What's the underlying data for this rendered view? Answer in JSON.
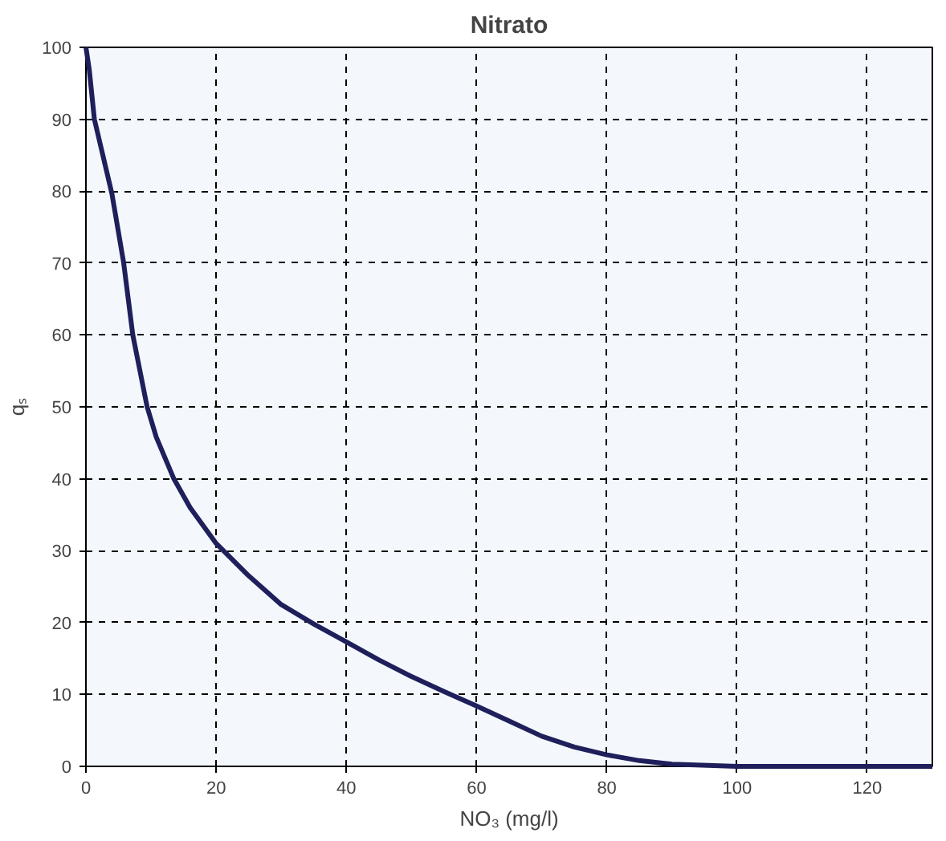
{
  "chart_data": {
    "type": "line",
    "title": "Nitrato",
    "xlabel": "NO₃ (mg/l)",
    "ylabel": "qₛ",
    "x": [
      0,
      0.5,
      1.3,
      4,
      5.8,
      7.2,
      9.4,
      10.8,
      13.5,
      16,
      20,
      25,
      30,
      35,
      40,
      45,
      50,
      55,
      60,
      65,
      70,
      75,
      80,
      85,
      90,
      100,
      110,
      120,
      130
    ],
    "series": [
      {
        "color": "#1f1f5c",
        "values": [
          100,
          97,
          90,
          79.6,
          70,
          60,
          50,
          45.8,
          40,
          36,
          31,
          26.5,
          22.5,
          19.8,
          17.3,
          14.8,
          12.5,
          10.4,
          8.4,
          6.3,
          4.2,
          2.7,
          1.6,
          0.8,
          0.3,
          0,
          0,
          0,
          0
        ]
      }
    ],
    "xlim": [
      0,
      130
    ],
    "xticks": [
      0,
      20,
      40,
      60,
      80,
      100,
      120
    ],
    "ylim": [
      0,
      100
    ],
    "yticks": [
      0,
      10,
      20,
      30,
      40,
      50,
      60,
      70,
      80,
      90,
      100
    ],
    "grid": true,
    "line_style": "solid",
    "marker": "none"
  }
}
